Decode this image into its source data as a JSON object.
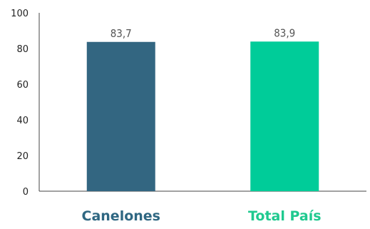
{
  "chart_data": {
    "type": "bar",
    "categories": [
      "Canelones",
      "Total País"
    ],
    "values": [
      83.7,
      83.9
    ],
    "value_labels": [
      "83,7",
      "83,9"
    ],
    "colors": [
      "#336681",
      "#00CC99"
    ],
    "category_label_colors": [
      "#2f6782",
      "#1fc98f"
    ],
    "y_ticks": [
      "0",
      "20",
      "40",
      "60",
      "80",
      "100"
    ],
    "ylim": [
      0,
      100
    ],
    "title": "",
    "xlabel": "",
    "ylabel": "",
    "grid": false,
    "legend": "none"
  }
}
